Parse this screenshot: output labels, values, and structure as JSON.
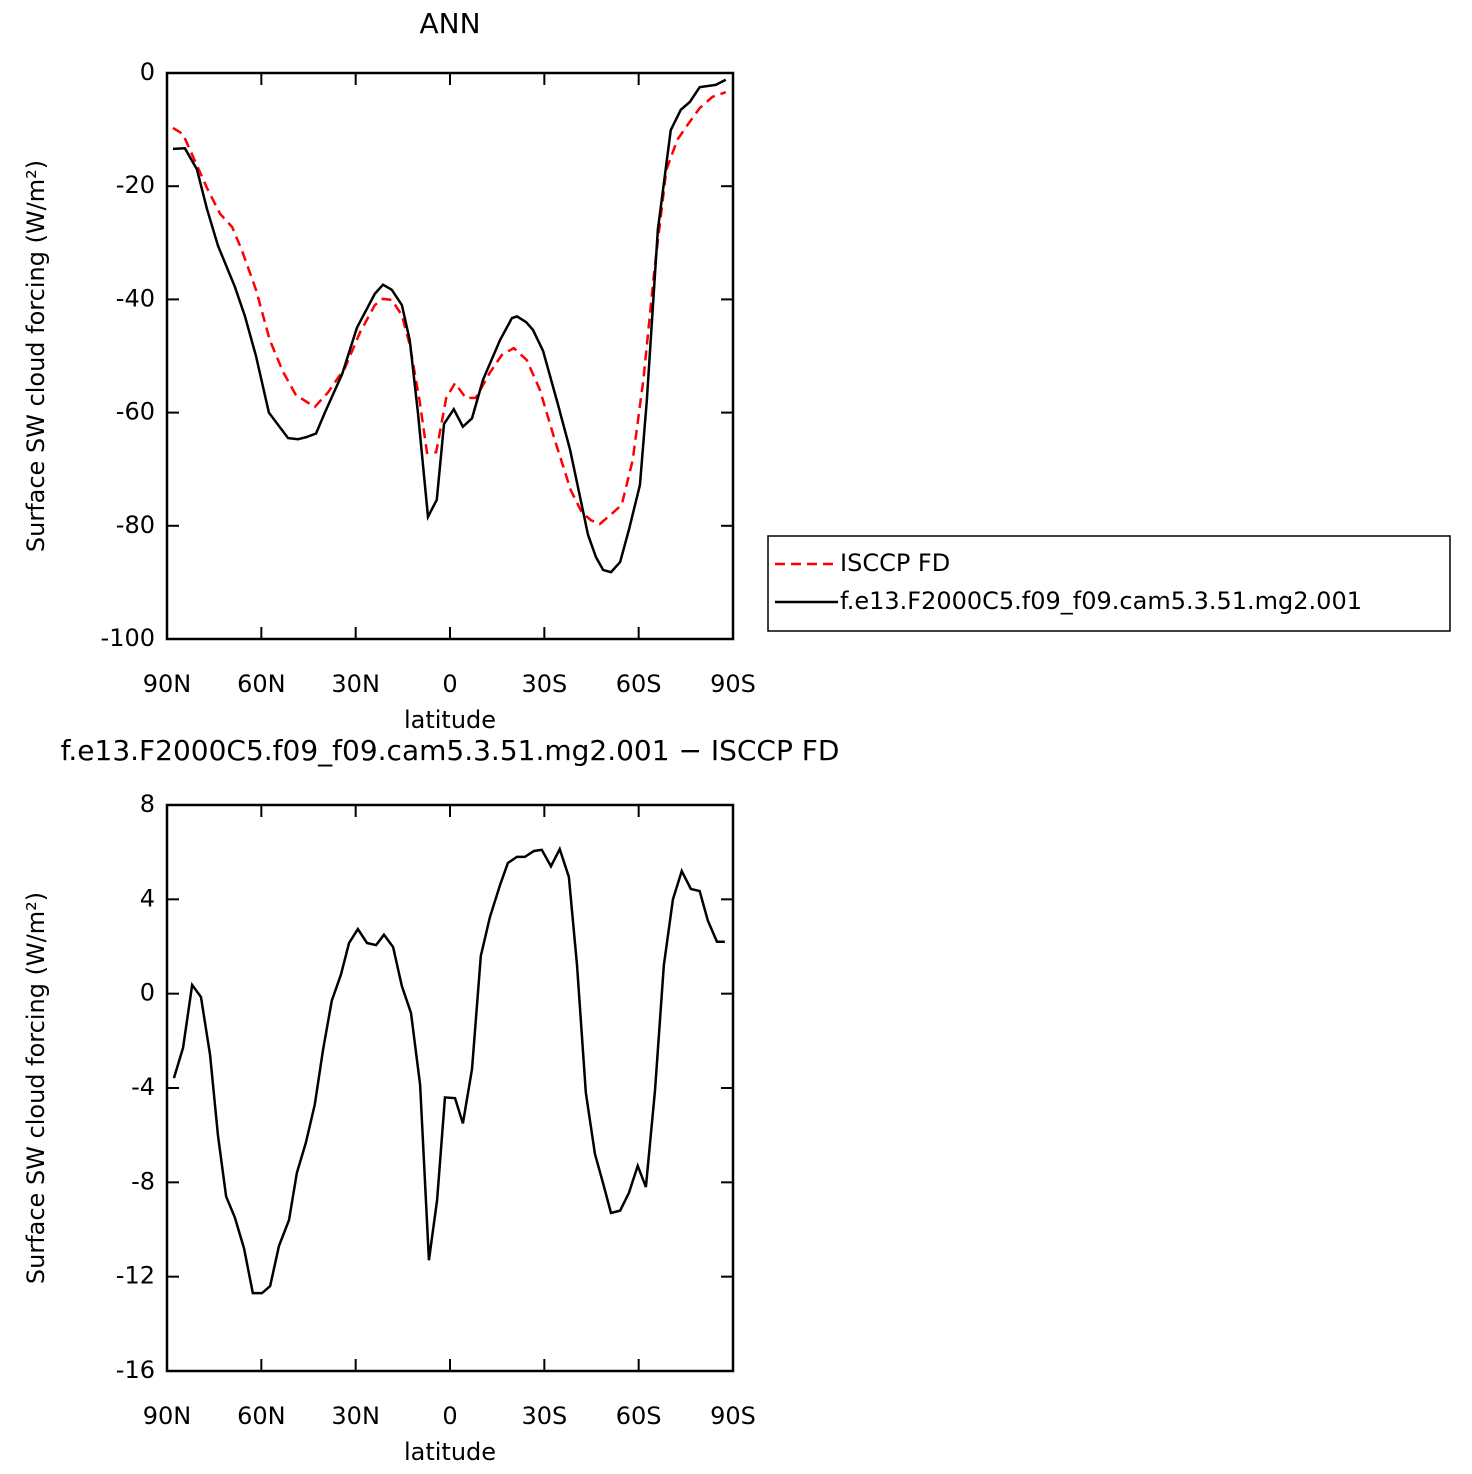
{
  "chart_data": [
    {
      "type": "line",
      "title": "ANN",
      "x_label": "latitude",
      "y_label": "Surface SW cloud forcing (W/m²)",
      "xlim": [
        90,
        -90
      ],
      "xticks": [
        {
          "value": 90,
          "label": "90N"
        },
        {
          "value": 60,
          "label": "60N"
        },
        {
          "value": 30,
          "label": "30N"
        },
        0,
        {
          "value": -30,
          "label": "30S"
        },
        {
          "value": -60,
          "label": "60S"
        },
        {
          "value": -90,
          "label": "90S"
        }
      ],
      "ylim": [
        -100,
        0
      ],
      "yticks": [
        0,
        -20,
        -40,
        -60,
        -80,
        -100
      ],
      "legend": "right",
      "series": [
        {
          "name": "ISCCP FD",
          "color": "#ff0000",
          "dash": true,
          "x": [
            88.1,
            84.9,
            80.5,
            77.3,
            73.1,
            69.3,
            66.2,
            61.7,
            57.3,
            53.1,
            49.0,
            43.0,
            38.9,
            33.4,
            28.6,
            23.9,
            21.3,
            18.5,
            15.3,
            12.8,
            9.7,
            7.3,
            4.4,
            1.2,
            -1.6,
            -5.0,
            -8.2,
            -12.6,
            -16.5,
            -20.3,
            -24.4,
            -28.6,
            -33.3,
            -38.4,
            -41.9,
            -44.8,
            -47.6,
            -51.4,
            -54.6,
            -58.1,
            -61.5,
            -65.0,
            -68.8,
            -72.3,
            -75.5,
            -79.4,
            -83.5,
            -87.7
          ],
          "values": [
            -9.7,
            -10.8,
            -16.3,
            -20.3,
            -24.9,
            -27.2,
            -31.3,
            -38.3,
            -47.2,
            -52.8,
            -56.9,
            -59.0,
            -56.5,
            -52.1,
            -45.8,
            -41.0,
            -39.9,
            -40.1,
            -42.8,
            -48.0,
            -57.8,
            -67.1,
            -67.0,
            -57.4,
            -54.8,
            -57.4,
            -57.4,
            -53.0,
            -49.8,
            -48.6,
            -50.7,
            -56.0,
            -64.8,
            -73.7,
            -77.6,
            -79.0,
            -79.7,
            -77.9,
            -76.3,
            -68.4,
            -54.2,
            -34.8,
            -17.1,
            -11.8,
            -9.2,
            -6.2,
            -4.2,
            -3.4
          ]
        },
        {
          "name": "f.e13.F2000C5.f09_f09.cam5.3.51.mg2.001",
          "color": "#000000",
          "dash": false,
          "x": [
            88.1,
            84.3,
            80.5,
            77.3,
            73.8,
            68.4,
            65.2,
            61.7,
            57.6,
            51.5,
            48.3,
            45.5,
            42.6,
            39.8,
            34.3,
            29.6,
            23.9,
            21.3,
            18.5,
            15.3,
            12.8,
            10.2,
            7.0,
            4.2,
            1.9,
            -1.2,
            -4.1,
            -7.0,
            -10.5,
            -15.9,
            -19.7,
            -21.3,
            -24.2,
            -26.4,
            -29.6,
            -34.4,
            -38.2,
            -43.9,
            -46.4,
            -48.7,
            -51.2,
            -54.1,
            -56.9,
            -60.4,
            -62.6,
            -66.1,
            -70.2,
            -73.4,
            -76.3,
            -79.4,
            -84.5,
            -87.7
          ],
          "values": [
            -13.4,
            -13.3,
            -17.0,
            -24.0,
            -30.5,
            -37.8,
            -43.0,
            -50.0,
            -60.0,
            -64.5,
            -64.7,
            -64.3,
            -63.7,
            -60.0,
            -53.2,
            -45.0,
            -39.0,
            -37.4,
            -38.3,
            -41.0,
            -47.2,
            -60.0,
            -78.4,
            -75.4,
            -62.0,
            -59.4,
            -62.5,
            -61.0,
            -54.2,
            -47.2,
            -43.3,
            -43.0,
            -44.0,
            -45.4,
            -49.1,
            -58.7,
            -66.6,
            -81.6,
            -85.5,
            -87.8,
            -88.2,
            -86.4,
            -80.7,
            -72.8,
            -57.8,
            -27.7,
            -10.1,
            -6.5,
            -5.1,
            -2.5,
            -2.1,
            -1.2
          ]
        }
      ]
    },
    {
      "type": "line",
      "title": "f.e13.F2000C5.f09_f09.cam5.3.51.mg2.001 − ISCCP FD",
      "x_label": "latitude",
      "y_label": "Surface SW cloud forcing (W/m²)",
      "xlim": [
        90,
        -90
      ],
      "xticks": [
        {
          "value": 90,
          "label": "90N"
        },
        {
          "value": 60,
          "label": "60N"
        },
        {
          "value": 30,
          "label": "30N"
        },
        0,
        {
          "value": -30,
          "label": "30S"
        },
        {
          "value": -60,
          "label": "60S"
        },
        {
          "value": -90,
          "label": "90S"
        }
      ],
      "ylim": [
        -16,
        8
      ],
      "yticks": [
        8,
        4,
        0,
        -4,
        -8,
        -12,
        -16
      ],
      "series": [
        {
          "color": "#000000",
          "dash": false,
          "x": [
            87.8,
            84.9,
            82.0,
            79.2,
            76.3,
            73.8,
            71.2,
            68.4,
            65.5,
            62.7,
            59.8,
            57.2,
            54.4,
            51.2,
            48.7,
            45.8,
            43.0,
            40.4,
            37.6,
            34.7,
            32.1,
            29.3,
            26.4,
            23.5,
            21.0,
            18.1,
            15.3,
            12.4,
            9.5,
            6.7,
            4.1,
            1.6,
            -1.6,
            -4.1,
            -7.0,
            -9.8,
            -12.7,
            -15.9,
            -18.4,
            -21.3,
            -23.8,
            -26.7,
            -29.2,
            -32.1,
            -34.9,
            -37.8,
            -40.4,
            -43.2,
            -46.1,
            -48.6,
            -51.2,
            -54.1,
            -56.9,
            -59.7,
            -62.3,
            -65.2,
            -68.0,
            -70.9,
            -73.7,
            -76.6,
            -79.4,
            -82.0,
            -84.9,
            -87.4
          ],
          "values": [
            -3.58,
            -2.3,
            0.37,
            -0.14,
            -2.6,
            -6.0,
            -8.6,
            -9.5,
            -10.8,
            -12.7,
            -12.7,
            -12.4,
            -10.7,
            -9.6,
            -7.6,
            -6.3,
            -4.7,
            -2.4,
            -0.3,
            0.8,
            2.15,
            2.74,
            2.15,
            2.06,
            2.5,
            1.98,
            0.32,
            -0.82,
            -3.87,
            -11.3,
            -8.75,
            -4.4,
            -4.43,
            -5.5,
            -3.2,
            1.6,
            3.25,
            4.6,
            5.54,
            5.8,
            5.8,
            6.05,
            6.1,
            5.4,
            6.13,
            4.95,
            1.2,
            -4.2,
            -6.8,
            -8.0,
            -9.3,
            -9.2,
            -8.45,
            -7.3,
            -8.2,
            -4.1,
            1.2,
            4.0,
            5.2,
            4.44,
            4.35,
            3.1,
            2.2,
            2.2
          ]
        }
      ]
    }
  ]
}
